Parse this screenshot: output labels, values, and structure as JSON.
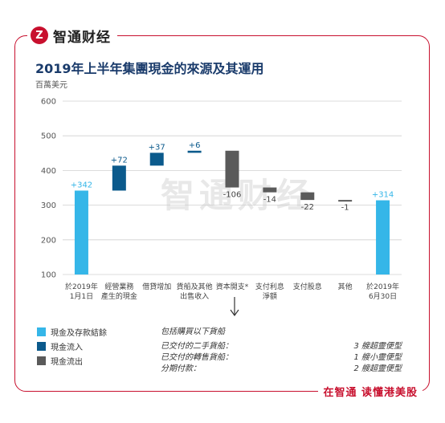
{
  "brand": {
    "logo_glyph": "Z",
    "name": "智通财经"
  },
  "tagline": "在智通  读懂港美股",
  "watermark": "智通财经",
  "chart_data": {
    "type": "waterfall",
    "title": "2019年上半年集團現金的來源及其運用",
    "ylabel": "百萬美元",
    "ylim": [
      100,
      600
    ],
    "yticks": [
      100,
      200,
      300,
      400,
      500,
      600
    ],
    "categories": [
      {
        "label": [
          "於2019年",
          "1月1日"
        ],
        "start": 0,
        "end": 342,
        "kind": "balance",
        "value_label": "+342"
      },
      {
        "label": [
          "經營業務",
          "產生的現金"
        ],
        "start": 342,
        "end": 414,
        "kind": "inflow",
        "value_label": "+72"
      },
      {
        "label": [
          "借貸增加"
        ],
        "start": 414,
        "end": 451,
        "kind": "inflow",
        "value_label": "+37"
      },
      {
        "label": [
          "貨船及其他",
          "出售收入"
        ],
        "start": 451,
        "end": 457,
        "kind": "inflow",
        "value_label": "+6"
      },
      {
        "label": [
          "資本開支*"
        ],
        "start": 457,
        "end": 351,
        "kind": "outflow",
        "value_label": "-106"
      },
      {
        "label": [
          "支付利息",
          "淨額"
        ],
        "start": 351,
        "end": 337,
        "kind": "outflow",
        "value_label": "-14"
      },
      {
        "label": [
          "支付股息"
        ],
        "start": 337,
        "end": 315,
        "kind": "outflow",
        "value_label": "-22"
      },
      {
        "label": [
          "其他"
        ],
        "start": 315,
        "end": 314,
        "kind": "outflow",
        "value_label": "-1"
      },
      {
        "label": [
          "於2019年",
          "6月30日"
        ],
        "start": 0,
        "end": 314,
        "kind": "balance",
        "value_label": "+314"
      }
    ],
    "colors": {
      "balance": "#35b6e8",
      "inflow": "#0b5a8c",
      "outflow": "#5a5a5a"
    },
    "legend": [
      {
        "label": "現金及存款結餘",
        "kind": "balance"
      },
      {
        "label": "現金流入",
        "kind": "inflow"
      },
      {
        "label": "現金流出",
        "kind": "outflow"
      }
    ]
  },
  "note": {
    "title": "包括購買以下貨船",
    "rows": [
      {
        "left": "已交付的二手貨船：",
        "right": "3 艘超靈便型"
      },
      {
        "left": "已交付的轉售貨船：",
        "right": "1 艘小靈便型"
      },
      {
        "left": "分期付款：",
        "right": "2 艘超靈便型"
      }
    ]
  }
}
